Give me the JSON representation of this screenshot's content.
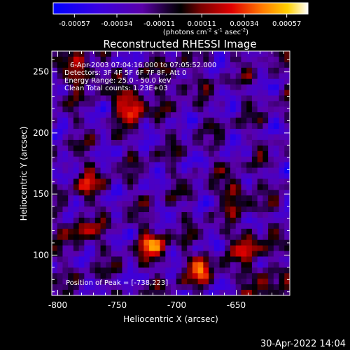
{
  "colorbar": {
    "tick_labels": [
      "-0.00057",
      "-0.00034",
      "-0.00011",
      "0.00011",
      "0.00034",
      "0.00057"
    ],
    "unit_prefix": "(photons cm",
    "unit_exp1": "-2",
    "unit_mid": " s",
    "unit_exp2": "-1",
    "unit_mid2": " asec",
    "unit_exp3": "-2",
    "unit_suffix": ")"
  },
  "header": {
    "title": "Reconstructed RHESSI Image",
    "info_lines": [
      "6-Apr-2003 07:04:16.000 to 07:05:52.000",
      "Detectors: 3F 4F 5F 6F 7F 8F, Att 0",
      "Energy Range: 25.0 - 50.0 keV",
      "Clean     Total counts: 1.23E+03"
    ],
    "peak_text": "Position of Peak = [-738,223]"
  },
  "footer": {
    "timestamp": "30-Apr-2022 14:04"
  },
  "chart_data": {
    "type": "heatmap",
    "title": "Reconstructed RHESSI Image",
    "xlabel": "Heliocentric X (arcsec)",
    "ylabel": "Heliocentric Y (arcsec)",
    "xlim": [
      -805,
      -605
    ],
    "ylim": [
      67,
      267
    ],
    "xticks": [
      -800,
      -750,
      -700,
      -650
    ],
    "yticks": [
      100,
      150,
      200,
      250
    ],
    "xtick_labels": [
      "-800",
      "-750",
      "-700",
      "-650"
    ],
    "ytick_labels": [
      "100",
      "150",
      "200",
      "250"
    ],
    "colorscale_range": [
      -0.00057,
      0.00057
    ],
    "peak_position": [
      -738,
      223
    ],
    "bright_sources": [
      {
        "x": -738,
        "y": 223,
        "value": 0.00057
      },
      {
        "x": -780,
        "y": 250,
        "value": 0.0004
      },
      {
        "x": -720,
        "y": 108,
        "value": 0.00045
      },
      {
        "x": -680,
        "y": 88,
        "value": 0.0004
      },
      {
        "x": -640,
        "y": 108,
        "value": 0.00038
      },
      {
        "x": -650,
        "y": 150,
        "value": 0.00032
      },
      {
        "x": -780,
        "y": 120,
        "value": 0.0003
      },
      {
        "x": -775,
        "y": 160,
        "value": 0.00028
      },
      {
        "x": -630,
        "y": 80,
        "value": 0.0003
      },
      {
        "x": -700,
        "y": 245,
        "value": 0.0002
      }
    ],
    "grid": false
  }
}
